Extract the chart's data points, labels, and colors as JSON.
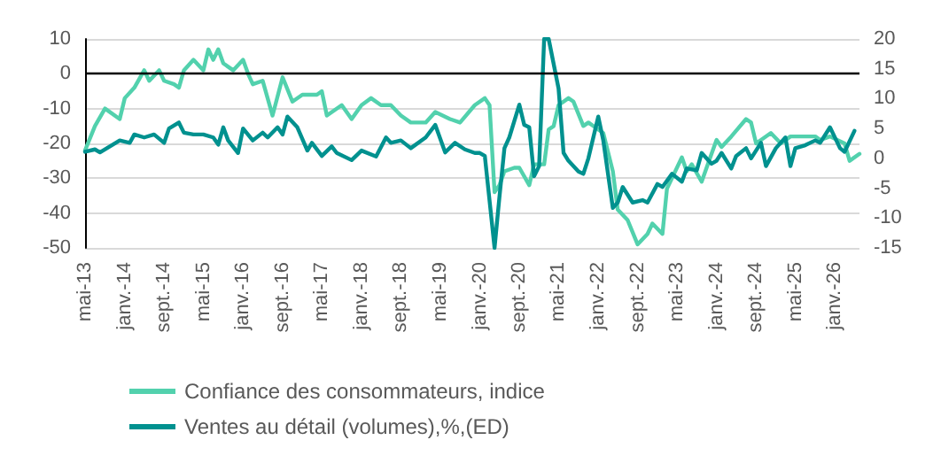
{
  "chart_data": {
    "type": "line",
    "xlim": [
      "2013-05",
      "2026-06"
    ],
    "xticks": [
      {
        "value": "2013-05",
        "label": "mai-13"
      },
      {
        "value": "2014-01",
        "label": "janv.-14"
      },
      {
        "value": "2014-09",
        "label": "sept.-14"
      },
      {
        "value": "2015-05",
        "label": "mai-15"
      },
      {
        "value": "2016-01",
        "label": "janv.-16"
      },
      {
        "value": "2016-09",
        "label": "sept.-16"
      },
      {
        "value": "2017-05",
        "label": "mai-17"
      },
      {
        "value": "2018-01",
        "label": "janv.-18"
      },
      {
        "value": "2018-09",
        "label": "sept.-18"
      },
      {
        "value": "2019-05",
        "label": "mai-19"
      },
      {
        "value": "2020-01",
        "label": "janv.-20"
      },
      {
        "value": "2020-09",
        "label": "sept.-20"
      },
      {
        "value": "2021-05",
        "label": "mai-21"
      },
      {
        "value": "2022-01",
        "label": "janv.-22"
      },
      {
        "value": "2022-09",
        "label": "sept.-22"
      },
      {
        "value": "2023-05",
        "label": "mai-23"
      },
      {
        "value": "2024-01",
        "label": "janv.-24"
      },
      {
        "value": "2024-09",
        "label": "sept.-24"
      },
      {
        "value": "2025-05",
        "label": "mai-25"
      },
      {
        "value": "2026-01",
        "label": "janv.-26"
      }
    ],
    "ylim": [
      -50,
      10
    ],
    "yticks": [
      -50,
      -40,
      -30,
      -20,
      -10,
      0,
      10
    ],
    "y2lim": [
      -15,
      20
    ],
    "y2ticks": [
      -15,
      -10,
      -5,
      0,
      5,
      10,
      15,
      20
    ],
    "grid": "y",
    "legend": "bottom",
    "marker": "none",
    "line_style": "solid",
    "ref_lines": [
      {
        "axis": "y",
        "value": 0,
        "color": "#000000"
      }
    ],
    "series": [
      {
        "name": "Confiance des consommateurs, indice",
        "color": "#52d1ad",
        "x": [
          "2013-05",
          "2013-07",
          "2013-09",
          "2013-12",
          "2014-01",
          "2014-03",
          "2014-05",
          "2014-06",
          "2014-08",
          "2014-09",
          "2014-11",
          "2014-12",
          "2015-01",
          "2015-03",
          "2015-05",
          "2015-06",
          "2015-07",
          "2015-08",
          "2015-09",
          "2015-11",
          "2016-01",
          "2016-02",
          "2016-03",
          "2016-05",
          "2016-07",
          "2016-09",
          "2016-11",
          "2017-01",
          "2017-04",
          "2017-05",
          "2017-06",
          "2017-09",
          "2017-11",
          "2018-01",
          "2018-03",
          "2018-05",
          "2018-07",
          "2018-09",
          "2018-11",
          "2019-02",
          "2019-04",
          "2019-07",
          "2019-09",
          "2019-12",
          "2020-02",
          "2020-03",
          "2020-04",
          "2020-05",
          "2020-06",
          "2020-08",
          "2020-09",
          "2020-11",
          "2020-12",
          "2021-02",
          "2021-03",
          "2021-04",
          "2021-05",
          "2021-07",
          "2021-08",
          "2021-10",
          "2021-11",
          "2021-12",
          "2022-02",
          "2022-04",
          "2022-05",
          "2022-07",
          "2022-09",
          "2022-11",
          "2022-12",
          "2023-02",
          "2023-03",
          "2023-06",
          "2023-07",
          "2023-08",
          "2023-10",
          "2023-12",
          "2024-01",
          "2024-02",
          "2024-04",
          "2024-07",
          "2024-08",
          "2024-09",
          "2024-12",
          "2025-02",
          "2025-04",
          "2025-06",
          "2025-09",
          "2025-10",
          "2025-12",
          "2026-03",
          "2026-04",
          "2026-06"
        ],
        "values": [
          -22,
          -15,
          -10,
          -13,
          -7,
          -4,
          1,
          -2,
          1,
          -2,
          -3,
          -4,
          1,
          4,
          1,
          7,
          4,
          7,
          3,
          1,
          4,
          0,
          -3,
          -2,
          -12,
          -1,
          -8,
          -6,
          -6,
          -5,
          -12,
          -9,
          -13,
          -9,
          -7,
          -9,
          -9,
          -12,
          -14,
          -14,
          -11,
          -13,
          -14,
          -9,
          -7,
          -9,
          -34,
          -32,
          -28,
          -27,
          -27,
          -32,
          -26,
          -26,
          -16,
          -15,
          -9,
          -7,
          -8,
          -15,
          -14,
          -15,
          -17,
          -28,
          -39,
          -42,
          -49,
          -46,
          -43,
          -46,
          -33,
          -24,
          -28,
          -26,
          -31,
          -23,
          -19,
          -21,
          -18,
          -13,
          -14,
          -20,
          -17,
          -20,
          -18,
          -18,
          -18,
          -19,
          -18,
          -20,
          -25,
          -23
        ]
      },
      {
        "name": "Ventes au détail (volumes),%,(ED)",
        "color": "#00918f",
        "axis": "y2",
        "x": [
          "2013-05",
          "2013-07",
          "2013-08",
          "2013-10",
          "2013-12",
          "2014-02",
          "2014-03",
          "2014-05",
          "2014-07",
          "2014-09",
          "2014-10",
          "2014-12",
          "2015-01",
          "2015-03",
          "2015-05",
          "2015-07",
          "2015-08",
          "2015-09",
          "2015-10",
          "2015-12",
          "2016-01",
          "2016-03",
          "2016-05",
          "2016-06",
          "2016-08",
          "2016-09",
          "2016-10",
          "2016-12",
          "2017-02",
          "2017-03",
          "2017-05",
          "2017-07",
          "2017-08",
          "2017-11",
          "2018-01",
          "2018-04",
          "2018-06",
          "2018-07",
          "2018-09",
          "2018-11",
          "2019-02",
          "2019-04",
          "2019-06",
          "2019-08",
          "2019-10",
          "2019-12",
          "2020-01",
          "2020-02",
          "2020-04",
          "2020-05",
          "2020-06",
          "2020-07",
          "2020-09",
          "2020-10",
          "2020-11",
          "2020-12",
          "2021-01",
          "2021-02",
          "2021-03",
          "2021-05",
          "2021-06",
          "2021-07",
          "2021-09",
          "2021-10",
          "2021-11",
          "2022-01",
          "2022-02",
          "2022-04",
          "2022-05",
          "2022-06",
          "2022-08",
          "2022-10",
          "2022-11",
          "2023-01",
          "2023-02",
          "2023-04",
          "2023-06",
          "2023-07",
          "2023-09",
          "2023-10",
          "2023-12",
          "2024-01",
          "2024-02",
          "2024-04",
          "2024-05",
          "2024-07",
          "2024-08",
          "2024-10",
          "2024-11",
          "2025-01",
          "2025-03",
          "2025-04",
          "2025-05",
          "2025-07",
          "2025-09",
          "2025-10",
          "2025-12",
          "2026-02",
          "2026-03",
          "2026-05"
        ],
        "values": [
          1.1,
          1.5,
          1,
          2,
          3,
          2.6,
          4,
          3.5,
          4,
          2.6,
          5,
          6,
          4.3,
          4,
          4,
          3.5,
          2.3,
          5.2,
          3,
          0.9,
          5,
          3,
          4.3,
          3.5,
          5.2,
          4,
          7,
          5.2,
          1.3,
          2.6,
          0.4,
          2,
          0.9,
          -0.3,
          1.3,
          0.3,
          3.5,
          2.6,
          3,
          1.7,
          3.5,
          5.6,
          1,
          2.6,
          1.5,
          0.9,
          0.9,
          0.4,
          -15,
          -6.5,
          1.7,
          3.5,
          9,
          5.6,
          5.2,
          -3,
          -1.3,
          20,
          20,
          11.7,
          0.9,
          -0.4,
          -2.2,
          -2.6,
          0,
          7,
          3,
          -8.3,
          -7.4,
          -4.8,
          -7.4,
          -7,
          -7.4,
          -4.3,
          -4.8,
          -2.6,
          -3.9,
          -1.7,
          -2,
          0.9,
          -0.9,
          -0.4,
          0.9,
          -1.7,
          0.4,
          1.7,
          0,
          2.6,
          -1.3,
          1.7,
          3.5,
          -1.3,
          1.7,
          2.2,
          3,
          2.6,
          5.2,
          1.7,
          1.1,
          4.6
        ]
      }
    ]
  }
}
